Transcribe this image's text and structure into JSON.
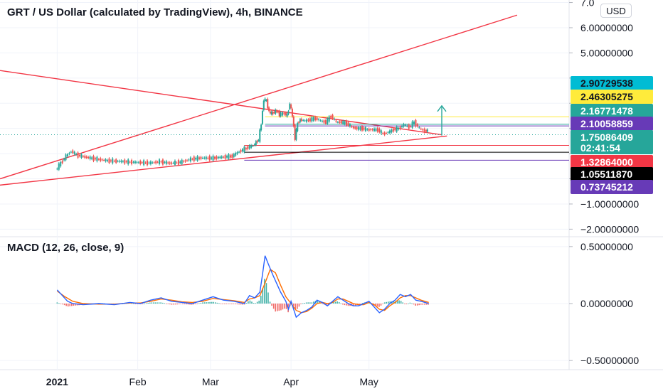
{
  "chart_data": [
    {
      "type": "candlestick",
      "title": "GRT / US Dollar (calculated by TradingView), 4h, BINANCE",
      "currency_button": "USD",
      "ylim": [
        -2.3,
        7.1
      ],
      "y_ticks": [
        {
          "value": 7.0,
          "label": "7.0"
        },
        {
          "value": 6.0,
          "label": "6.00000000"
        },
        {
          "value": 5.0,
          "label": "5.00000000"
        },
        {
          "value": -1.0,
          "label": "−1.00000000"
        },
        {
          "value": -2.0,
          "label": "−2.00000000"
        }
      ],
      "x_ticks": [
        "2021",
        "Feb",
        "Mar",
        "Apr",
        "May"
      ],
      "price_tags": [
        {
          "label": "2.90729538",
          "value": 2.907,
          "bg": "#00bcd4",
          "fg": "#131722"
        },
        {
          "label": "2.46305275",
          "value": 2.463,
          "bg": "#ffeb3b",
          "fg": "#131722"
        },
        {
          "label": "2.16771478",
          "value": 2.168,
          "bg": "#26a69a",
          "fg": "#ffffff"
        },
        {
          "label": "2.10058859",
          "value": 2.101,
          "bg": "#673ab7",
          "fg": "#ffffff"
        },
        {
          "label": "1.75086409",
          "value": 1.751,
          "bg": "#26a69a",
          "fg": "#ffffff",
          "sub": "02:41:54"
        },
        {
          "label": "1.32864000",
          "value": 1.329,
          "bg": "#f23645",
          "fg": "#ffffff"
        },
        {
          "label": "1.05511870",
          "value": 1.055,
          "bg": "#000000",
          "fg": "#ffffff"
        },
        {
          "label": "0.73745212",
          "value": 0.737,
          "bg": "#673ab7",
          "fg": "#ffffff"
        }
      ],
      "price_series": [
        [
          0,
          0.35
        ],
        [
          4,
          0.9
        ],
        [
          6,
          1.1
        ],
        [
          8,
          0.95
        ],
        [
          12,
          0.85
        ],
        [
          16,
          0.78
        ],
        [
          20,
          0.72
        ],
        [
          24,
          0.7
        ],
        [
          28,
          0.67
        ],
        [
          32,
          0.65
        ],
        [
          36,
          0.63
        ],
        [
          40,
          0.68
        ],
        [
          44,
          0.62
        ],
        [
          48,
          0.66
        ],
        [
          52,
          0.78
        ],
        [
          56,
          0.83
        ],
        [
          60,
          0.82
        ],
        [
          64,
          0.86
        ],
        [
          68,
          0.9
        ],
        [
          70,
          1.05
        ],
        [
          72,
          1.15
        ],
        [
          74,
          1.25
        ],
        [
          76,
          1.32
        ],
        [
          77,
          1.45
        ],
        [
          78,
          1.55
        ],
        [
          79,
          2.2
        ],
        [
          80,
          3.15
        ],
        [
          81,
          3.1
        ],
        [
          82,
          2.65
        ],
        [
          83,
          2.6
        ],
        [
          84,
          2.65
        ],
        [
          85,
          2.7
        ],
        [
          86,
          2.55
        ],
        [
          88,
          2.6
        ],
        [
          89,
          2.5
        ],
        [
          90,
          3.0
        ],
        [
          91,
          2.5
        ],
        [
          92,
          1.62
        ],
        [
          93,
          2.2
        ],
        [
          94,
          2.35
        ],
        [
          96,
          2.3
        ],
        [
          98,
          2.35
        ],
        [
          100,
          2.4
        ],
        [
          102,
          2.3
        ],
        [
          104,
          2.25
        ],
        [
          106,
          2.5
        ],
        [
          108,
          2.25
        ],
        [
          110,
          2.25
        ],
        [
          112,
          2.2
        ],
        [
          114,
          2.05
        ],
        [
          116,
          2.0
        ],
        [
          118,
          2.0
        ],
        [
          120,
          1.95
        ],
        [
          122,
          1.95
        ],
        [
          124,
          1.95
        ],
        [
          126,
          1.78
        ],
        [
          128,
          1.85
        ],
        [
          130,
          1.95
        ],
        [
          132,
          2.0
        ],
        [
          134,
          2.15
        ],
        [
          136,
          2.05
        ],
        [
          138,
          2.25
        ],
        [
          140,
          2.0
        ],
        [
          142,
          1.9
        ],
        [
          143,
          1.92
        ]
      ],
      "x_range": [
        -22,
        197
      ],
      "x_tick_positions": [
        0,
        31,
        59,
        90,
        120
      ]
    },
    {
      "type": "line",
      "title": "MACD (12, 26, close, 9)",
      "ylim": [
        -0.58,
        0.58
      ],
      "y_ticks": [
        {
          "value": 0.5,
          "label": "0.50000000"
        },
        {
          "value": 0.0,
          "label": "0.00000000"
        },
        {
          "value": -0.5,
          "label": "−0.50000000"
        }
      ],
      "series": [
        {
          "values": [
            [
              0,
              0.12
            ],
            [
              2,
              0.07
            ],
            [
              4,
              0.02
            ],
            [
              6,
              0.0
            ],
            [
              10,
              -0.01
            ],
            [
              16,
              0.0
            ],
            [
              22,
              -0.01
            ],
            [
              28,
              0.01
            ],
            [
              32,
              0.0
            ],
            [
              36,
              0.03
            ],
            [
              40,
              0.05
            ],
            [
              44,
              0.02
            ],
            [
              48,
              0.01
            ],
            [
              52,
              0.0
            ],
            [
              56,
              0.03
            ],
            [
              60,
              0.06
            ],
            [
              64,
              0.03
            ],
            [
              68,
              0.02
            ],
            [
              72,
              0.0
            ],
            [
              74,
              0.07
            ],
            [
              76,
              0.05
            ],
            [
              78,
              0.1
            ],
            [
              79,
              0.25
            ],
            [
              80,
              0.42
            ],
            [
              81,
              0.36
            ],
            [
              83,
              0.25
            ],
            [
              86,
              0.1
            ],
            [
              88,
              0.02
            ],
            [
              89,
              -0.05
            ],
            [
              90,
              0.02
            ],
            [
              92,
              -0.12
            ],
            [
              94,
              -0.08
            ],
            [
              96,
              -0.06
            ],
            [
              98,
              -0.03
            ],
            [
              100,
              0.03
            ],
            [
              102,
              0.01
            ],
            [
              104,
              -0.02
            ],
            [
              106,
              0.02
            ],
            [
              108,
              0.06
            ],
            [
              110,
              0.03
            ],
            [
              112,
              0.0
            ],
            [
              114,
              -0.02
            ],
            [
              116,
              -0.02
            ],
            [
              118,
              0.0
            ],
            [
              120,
              0.02
            ],
            [
              122,
              -0.03
            ],
            [
              124,
              -0.08
            ],
            [
              126,
              -0.05
            ],
            [
              128,
              0.0
            ],
            [
              130,
              0.03
            ],
            [
              132,
              0.08
            ],
            [
              134,
              0.06
            ],
            [
              136,
              0.08
            ],
            [
              138,
              0.03
            ],
            [
              140,
              0.02
            ],
            [
              143,
              0.0
            ]
          ],
          "color": "#2962ff"
        },
        {
          "values": [
            [
              0,
              0.11
            ],
            [
              3,
              0.06
            ],
            [
              6,
              0.02
            ],
            [
              10,
              0.0
            ],
            [
              16,
              -0.005
            ],
            [
              22,
              -0.005
            ],
            [
              28,
              0.005
            ],
            [
              32,
              0.005
            ],
            [
              36,
              0.02
            ],
            [
              40,
              0.04
            ],
            [
              44,
              0.03
            ],
            [
              48,
              0.015
            ],
            [
              52,
              0.01
            ],
            [
              56,
              0.02
            ],
            [
              60,
              0.045
            ],
            [
              64,
              0.035
            ],
            [
              68,
              0.025
            ],
            [
              72,
              0.01
            ],
            [
              74,
              0.04
            ],
            [
              76,
              0.05
            ],
            [
              78,
              0.07
            ],
            [
              80,
              0.18
            ],
            [
              82,
              0.3
            ],
            [
              84,
              0.27
            ],
            [
              86,
              0.16
            ],
            [
              88,
              0.06
            ],
            [
              90,
              0.0
            ],
            [
              92,
              -0.06
            ],
            [
              94,
              -0.08
            ],
            [
              96,
              -0.07
            ],
            [
              98,
              -0.04
            ],
            [
              100,
              0.0
            ],
            [
              102,
              0.01
            ],
            [
              104,
              0.0
            ],
            [
              106,
              0.01
            ],
            [
              108,
              0.04
            ],
            [
              110,
              0.04
            ],
            [
              112,
              0.02
            ],
            [
              114,
              0.0
            ],
            [
              116,
              -0.01
            ],
            [
              118,
              -0.01
            ],
            [
              120,
              0.01
            ],
            [
              122,
              -0.01
            ],
            [
              124,
              -0.05
            ],
            [
              126,
              -0.06
            ],
            [
              128,
              -0.02
            ],
            [
              130,
              0.01
            ],
            [
              132,
              0.05
            ],
            [
              134,
              0.07
            ],
            [
              136,
              0.07
            ],
            [
              138,
              0.05
            ],
            [
              140,
              0.03
            ],
            [
              143,
              0.01
            ]
          ],
          "color": "#ff6d00"
        }
      ]
    }
  ]
}
